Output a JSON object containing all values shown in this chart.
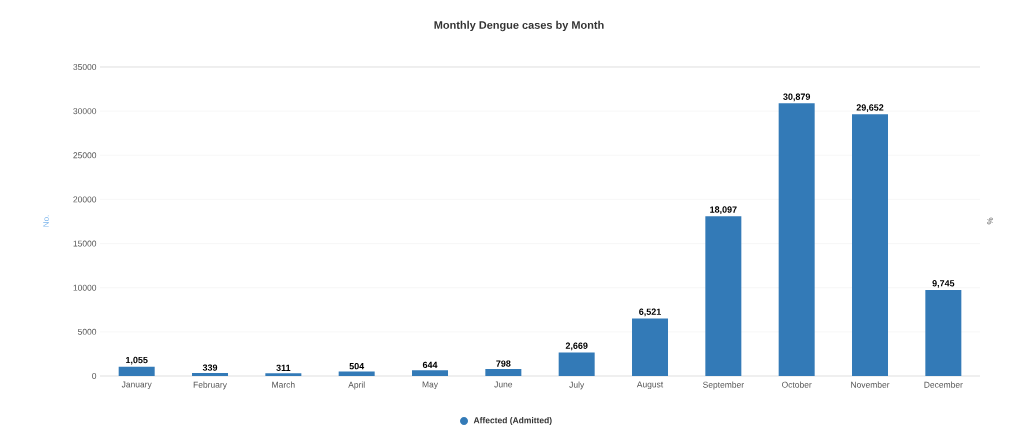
{
  "chart_data": {
    "type": "bar",
    "title": "Monthly Dengue cases by Month",
    "ylabel": "No.",
    "y2label": "%",
    "categories": [
      "January",
      "February",
      "March",
      "April",
      "May",
      "June",
      "July",
      "August",
      "September",
      "October",
      "November",
      "December"
    ],
    "series": [
      {
        "name": "Affected (Admitted)",
        "color": "#337ab7",
        "values": [
          1055,
          339,
          311,
          504,
          644,
          798,
          2669,
          6521,
          18097,
          30879,
          29652,
          9745
        ],
        "value_labels": [
          "1,055",
          "339",
          "311",
          "504",
          "644",
          "798",
          "2,669",
          "6,521",
          "18,097",
          "30,879",
          "29,652",
          "9,745"
        ]
      }
    ],
    "ylim": [
      0,
      35000
    ],
    "yticks": [
      0,
      5000,
      10000,
      15000,
      20000,
      25000,
      30000,
      35000
    ],
    "grid": "y",
    "legend": "bottom"
  }
}
